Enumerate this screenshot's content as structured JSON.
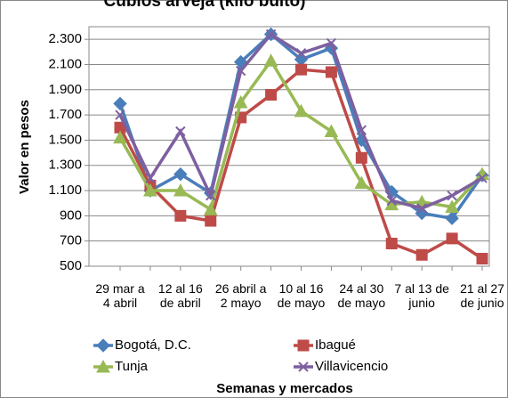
{
  "chart_data": {
    "type": "line",
    "title": "Cubios arveja (kilo bulto)",
    "x_label": "Semanas y mercados",
    "y_label": "Valor en pesos",
    "categories": [
      "29 mar a 4 abril",
      null,
      "12 al 16 de abril",
      null,
      "26 abril a 2 mayo",
      null,
      "10 al 16 de mayo",
      null,
      "24 al 30 de mayo",
      null,
      "7 al 13 de junio",
      null,
      "21 al 27 de junio"
    ],
    "series": [
      {
        "name": "Bogotá, D.C.",
        "color": "#4a7ebb",
        "marker": "diamond",
        "values": [
          1790,
          1100,
          1230,
          1080,
          2120,
          2340,
          2140,
          2230,
          1500,
          1090,
          920,
          880,
          1220
        ]
      },
      {
        "name": "Ibagué",
        "color": "#be4b48",
        "marker": "square",
        "values": [
          1600,
          1140,
          900,
          860,
          1680,
          1860,
          2060,
          2040,
          1360,
          680,
          590,
          720,
          560
        ]
      },
      {
        "name": "Tunja",
        "color": "#98b954",
        "marker": "triangle",
        "values": [
          1520,
          1100,
          1100,
          950,
          1800,
          2130,
          1730,
          1570,
          1160,
          990,
          1010,
          970,
          1230
        ]
      },
      {
        "name": "Villavicencio",
        "color": "#7d60a0",
        "marker": "x",
        "values": [
          1700,
          1200,
          1570,
          1060,
          2050,
          2340,
          2190,
          2270,
          1580,
          1020,
          960,
          1060,
          1200
        ]
      }
    ],
    "ylim": [
      500,
      2400
    ],
    "yticks": [
      {
        "value": 500,
        "label": "500"
      },
      {
        "value": 700,
        "label": "700"
      },
      {
        "value": 900,
        "label": "900"
      },
      {
        "value": 1100,
        "label": "1.100"
      },
      {
        "value": 1300,
        "label": "1.300"
      },
      {
        "value": 1500,
        "label": "1.500"
      },
      {
        "value": 1700,
        "label": "1.700"
      },
      {
        "value": 1900,
        "label": "1.900"
      },
      {
        "value": 2100,
        "label": "2.100"
      },
      {
        "value": 2300,
        "label": "2.300"
      }
    ],
    "grid": true
  }
}
